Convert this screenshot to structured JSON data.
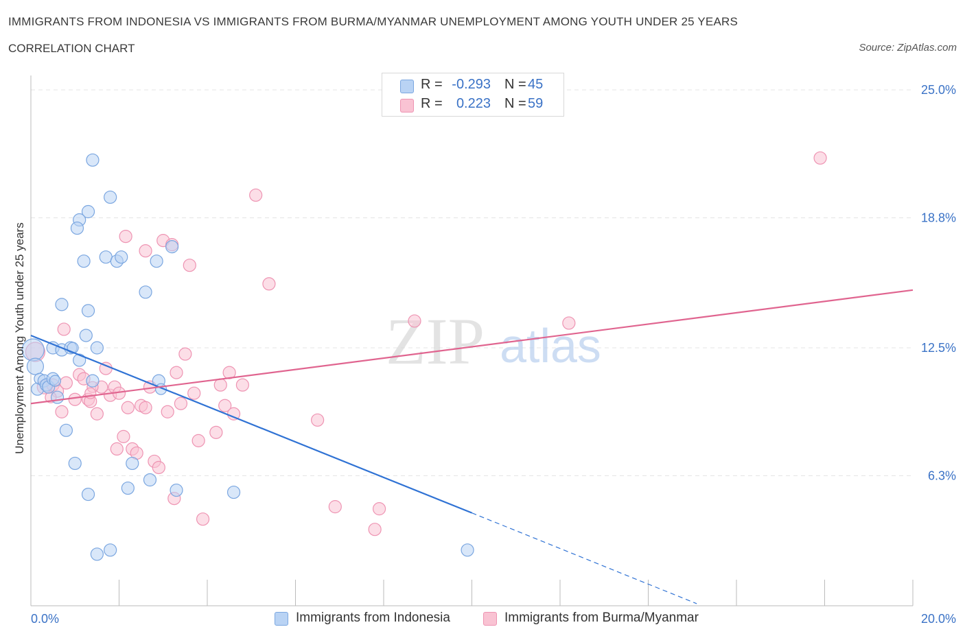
{
  "header": {
    "title": "IMMIGRANTS FROM INDONESIA VS IMMIGRANTS FROM BURMA/MYANMAR UNEMPLOYMENT AMONG YOUTH UNDER 25 YEARS",
    "subtitle": "CORRELATION CHART",
    "source": "Source: ZipAtlas.com"
  },
  "watermark": {
    "zip": "ZIP",
    "atlas": "atlas"
  },
  "legend": {
    "r_label": "R =",
    "n_label": "N =",
    "series": [
      {
        "name": "Immigrants from Indonesia",
        "r": "-0.293",
        "n": "45"
      },
      {
        "name": "Immigrants from Burma/Myanmar",
        "r": "0.223",
        "n": "59"
      }
    ]
  },
  "colors": {
    "indonesia_fill": "#b9d3f4",
    "indonesia_stroke": "#7aa6e0",
    "indonesia_line": "#2f72d4",
    "burma_fill": "#f9c3d3",
    "burma_stroke": "#ee93b2",
    "burma_line": "#e0648f",
    "axis_label": "#3a72c6",
    "grid": "#e4e4e4"
  },
  "chart_data": {
    "type": "scatter",
    "title": "IMMIGRANTS FROM INDONESIA VS IMMIGRANTS FROM BURMA/MYANMAR UNEMPLOYMENT AMONG YOUTH UNDER 25 YEARS",
    "xlabel": "",
    "ylabel": "Unemployment Among Youth under 25 years",
    "xlim": [
      0,
      20
    ],
    "ylim": [
      0,
      25.5
    ],
    "x_tick_labels": [
      {
        "value": 0,
        "label": "0.0%"
      },
      {
        "value": 20,
        "label": "20.0%"
      }
    ],
    "y_tick_labels": [
      {
        "value": 6.3,
        "label": "6.3%"
      },
      {
        "value": 12.5,
        "label": "12.5%"
      },
      {
        "value": 18.8,
        "label": "18.8%"
      },
      {
        "value": 25.0,
        "label": "25.0%"
      }
    ],
    "grid": true,
    "series": [
      {
        "name": "Immigrants from Indonesia",
        "r": -0.293,
        "n": 45,
        "trend": {
          "x": [
            0,
            10
          ],
          "y": [
            13.1,
            4.5
          ]
        },
        "trend_dashed_to": {
          "x": 15.1,
          "y": 0.1
        },
        "points": [
          [
            0.05,
            12.4,
            16
          ],
          [
            0.1,
            11.6,
            12
          ],
          [
            0.15,
            10.5,
            9
          ],
          [
            0.2,
            11.0,
            8
          ],
          [
            0.3,
            10.9,
            9
          ],
          [
            0.35,
            10.7,
            9
          ],
          [
            0.4,
            10.6,
            9
          ],
          [
            0.5,
            11.0,
            9
          ],
          [
            0.6,
            10.1,
            9
          ],
          [
            0.55,
            10.9,
            8
          ],
          [
            0.7,
            14.6,
            9
          ],
          [
            0.5,
            12.5,
            9
          ],
          [
            0.7,
            12.4,
            9
          ],
          [
            0.9,
            12.5,
            9
          ],
          [
            0.95,
            12.5,
            8
          ],
          [
            1.1,
            11.9,
            9
          ],
          [
            1.25,
            13.1,
            9
          ],
          [
            1.3,
            14.3,
            9
          ],
          [
            1.5,
            12.5,
            9
          ],
          [
            1.4,
            10.9,
            9
          ],
          [
            0.8,
            8.5,
            9
          ],
          [
            1.0,
            6.9,
            9
          ],
          [
            1.3,
            5.4,
            9
          ],
          [
            1.5,
            2.5,
            9
          ],
          [
            1.8,
            2.7,
            9
          ],
          [
            1.4,
            21.6,
            9
          ],
          [
            1.8,
            19.8,
            9
          ],
          [
            1.3,
            19.1,
            9
          ],
          [
            1.1,
            18.7,
            9
          ],
          [
            1.05,
            18.3,
            9
          ],
          [
            1.2,
            16.7,
            9
          ],
          [
            1.7,
            16.9,
            9
          ],
          [
            1.95,
            16.7,
            9
          ],
          [
            2.05,
            16.9,
            9
          ],
          [
            2.6,
            15.2,
            9
          ],
          [
            2.85,
            16.7,
            9
          ],
          [
            3.2,
            17.4,
            9
          ],
          [
            2.9,
            10.9,
            9
          ],
          [
            2.2,
            5.7,
            9
          ],
          [
            2.3,
            6.9,
            9
          ],
          [
            2.7,
            6.1,
            9
          ],
          [
            3.3,
            5.6,
            9
          ],
          [
            4.6,
            5.5,
            9
          ],
          [
            9.9,
            2.7,
            9
          ],
          [
            2.95,
            10.5,
            8
          ]
        ]
      },
      {
        "name": "Immigrants from Burma/Myanmar",
        "r": 0.223,
        "n": 59,
        "trend": {
          "x": [
            0,
            20
          ],
          "y": [
            9.8,
            15.3
          ]
        },
        "points": [
          [
            0.1,
            12.3,
            14
          ],
          [
            0.3,
            10.6,
            10
          ],
          [
            0.5,
            10.7,
            9
          ],
          [
            0.6,
            10.4,
            9
          ],
          [
            0.7,
            9.4,
            9
          ],
          [
            0.8,
            10.8,
            9
          ],
          [
            0.75,
            13.4,
            9
          ],
          [
            1.0,
            10.0,
            9
          ],
          [
            1.1,
            11.2,
            9
          ],
          [
            1.2,
            11.0,
            9
          ],
          [
            1.3,
            10.0,
            9
          ],
          [
            1.35,
            9.9,
            9
          ],
          [
            1.5,
            9.3,
            9
          ],
          [
            1.6,
            10.6,
            9
          ],
          [
            1.7,
            11.5,
            9
          ],
          [
            1.8,
            10.2,
            9
          ],
          [
            1.9,
            10.6,
            9
          ],
          [
            2.0,
            10.3,
            9
          ],
          [
            1.95,
            7.6,
            9
          ],
          [
            2.1,
            8.2,
            9
          ],
          [
            2.2,
            9.6,
            9
          ],
          [
            2.3,
            7.6,
            9
          ],
          [
            2.4,
            7.4,
            9
          ],
          [
            2.5,
            9.7,
            9
          ],
          [
            2.6,
            9.6,
            9
          ],
          [
            2.7,
            10.6,
            9
          ],
          [
            2.8,
            7.0,
            9
          ],
          [
            3.1,
            9.4,
            9
          ],
          [
            3.3,
            11.3,
            9
          ],
          [
            3.5,
            12.2,
            9
          ],
          [
            3.4,
            9.8,
            9
          ],
          [
            3.7,
            10.3,
            9
          ],
          [
            3.8,
            8.0,
            9
          ],
          [
            4.2,
            8.4,
            9
          ],
          [
            4.3,
            10.7,
            9
          ],
          [
            4.4,
            9.7,
            9
          ],
          [
            4.5,
            11.3,
            9
          ],
          [
            4.6,
            9.3,
            9
          ],
          [
            4.8,
            10.7,
            9
          ],
          [
            2.15,
            17.9,
            9
          ],
          [
            2.6,
            17.2,
            9
          ],
          [
            3.0,
            17.7,
            9
          ],
          [
            3.2,
            17.5,
            9
          ],
          [
            3.6,
            16.5,
            9
          ],
          [
            5.1,
            19.9,
            9
          ],
          [
            5.4,
            15.6,
            9
          ],
          [
            3.25,
            5.2,
            9
          ],
          [
            3.9,
            4.2,
            9
          ],
          [
            6.5,
            9.0,
            9
          ],
          [
            6.9,
            4.8,
            9
          ],
          [
            7.8,
            3.7,
            9
          ],
          [
            7.9,
            4.7,
            9
          ],
          [
            8.7,
            13.8,
            9
          ],
          [
            12.2,
            13.7,
            9
          ],
          [
            17.9,
            21.7,
            9
          ],
          [
            1.4,
            10.6,
            8
          ],
          [
            2.9,
            6.7,
            9
          ],
          [
            1.35,
            10.3,
            8
          ],
          [
            0.45,
            10.1,
            8
          ]
        ]
      }
    ]
  }
}
